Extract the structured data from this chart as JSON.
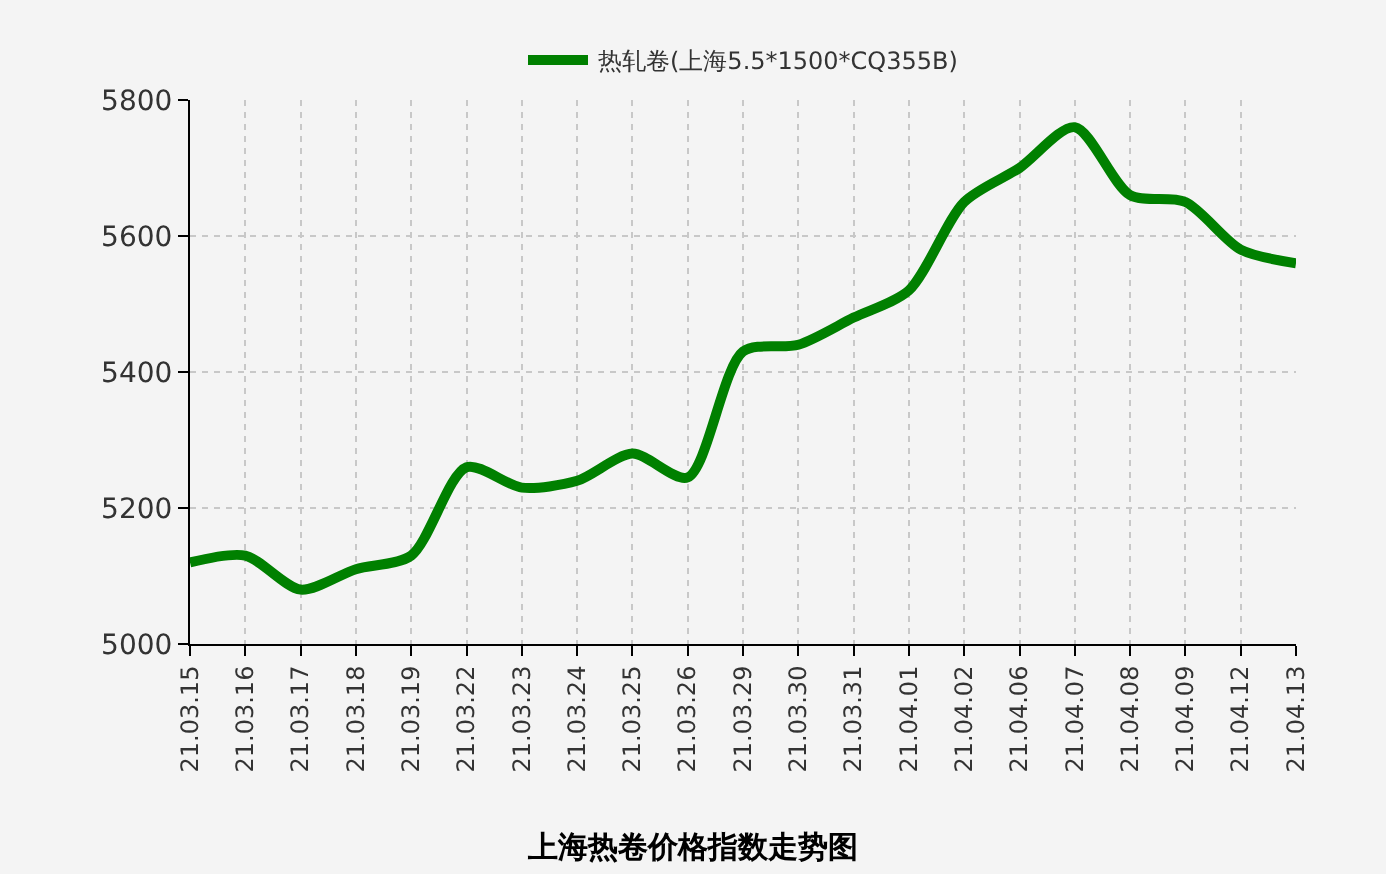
{
  "chart_data": {
    "type": "line",
    "title": "上海热卷价格指数走势图",
    "categories": [
      "21.03.15",
      "21.03.16",
      "21.03.17",
      "21.03.18",
      "21.03.19",
      "21.03.22",
      "21.03.23",
      "21.03.24",
      "21.03.25",
      "21.03.26",
      "21.03.29",
      "21.03.30",
      "21.03.31",
      "21.04.01",
      "21.04.02",
      "21.04.06",
      "21.04.07",
      "21.04.08",
      "21.04.09",
      "21.04.12",
      "21.04.13"
    ],
    "series": [
      {
        "name": "热轧卷(上海5.5*1500*CQ355B)",
        "color": "#008000",
        "values": [
          5120,
          5130,
          5080,
          5110,
          5130,
          5260,
          5230,
          5240,
          5280,
          5245,
          5430,
          5440,
          5480,
          5520,
          5650,
          5700,
          5760,
          5660,
          5650,
          5580,
          5560
        ]
      }
    ],
    "ylim": [
      5000,
      5800
    ],
    "yticks": [
      5000,
      5200,
      5400,
      5600,
      5800
    ],
    "grid": true,
    "legend": "top",
    "marker": "none",
    "line_style": "solid"
  }
}
